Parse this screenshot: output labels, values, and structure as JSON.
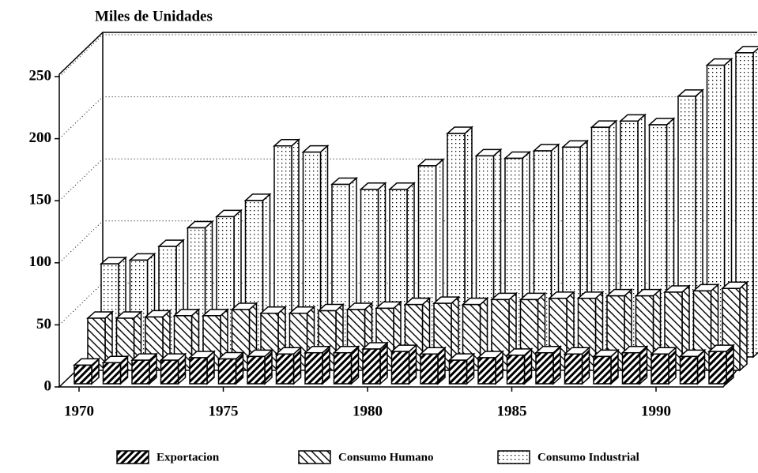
{
  "chart_data": {
    "type": "bar3d",
    "title": "Miles de Unidades",
    "categories": [
      "1970",
      null,
      null,
      null,
      null,
      "1975",
      null,
      null,
      null,
      null,
      "1980",
      null,
      null,
      null,
      null,
      "1985",
      null,
      null,
      null,
      null,
      "1990",
      null,
      null
    ],
    "series": [
      {
        "name": "Exportacion",
        "color": "#000000",
        "pattern": "dense-hatch",
        "values": [
          15,
          17,
          19,
          19,
          21,
          20,
          22,
          24,
          25,
          25,
          28,
          26,
          24,
          19,
          21,
          23,
          25,
          24,
          22,
          25,
          24,
          22,
          26
        ]
      },
      {
        "name": "Consumo Humano",
        "color": "#000000",
        "pattern": "light-hatch",
        "values": [
          42,
          42,
          43,
          44,
          44,
          49,
          46,
          46,
          48,
          49,
          50,
          53,
          54,
          53,
          57,
          57,
          58,
          58,
          60,
          60,
          63,
          64,
          66
        ]
      },
      {
        "name": "Consumo Industrial",
        "color": "#000000",
        "pattern": "dots",
        "values": [
          75,
          78,
          89,
          104,
          113,
          126,
          170,
          165,
          139,
          135,
          135,
          154,
          180,
          162,
          160,
          166,
          169,
          185,
          190,
          187,
          210,
          235,
          245
        ]
      }
    ],
    "ylim": [
      0,
      250
    ],
    "yticks": [
      0,
      50,
      100,
      150,
      200,
      250
    ],
    "grid": true
  }
}
